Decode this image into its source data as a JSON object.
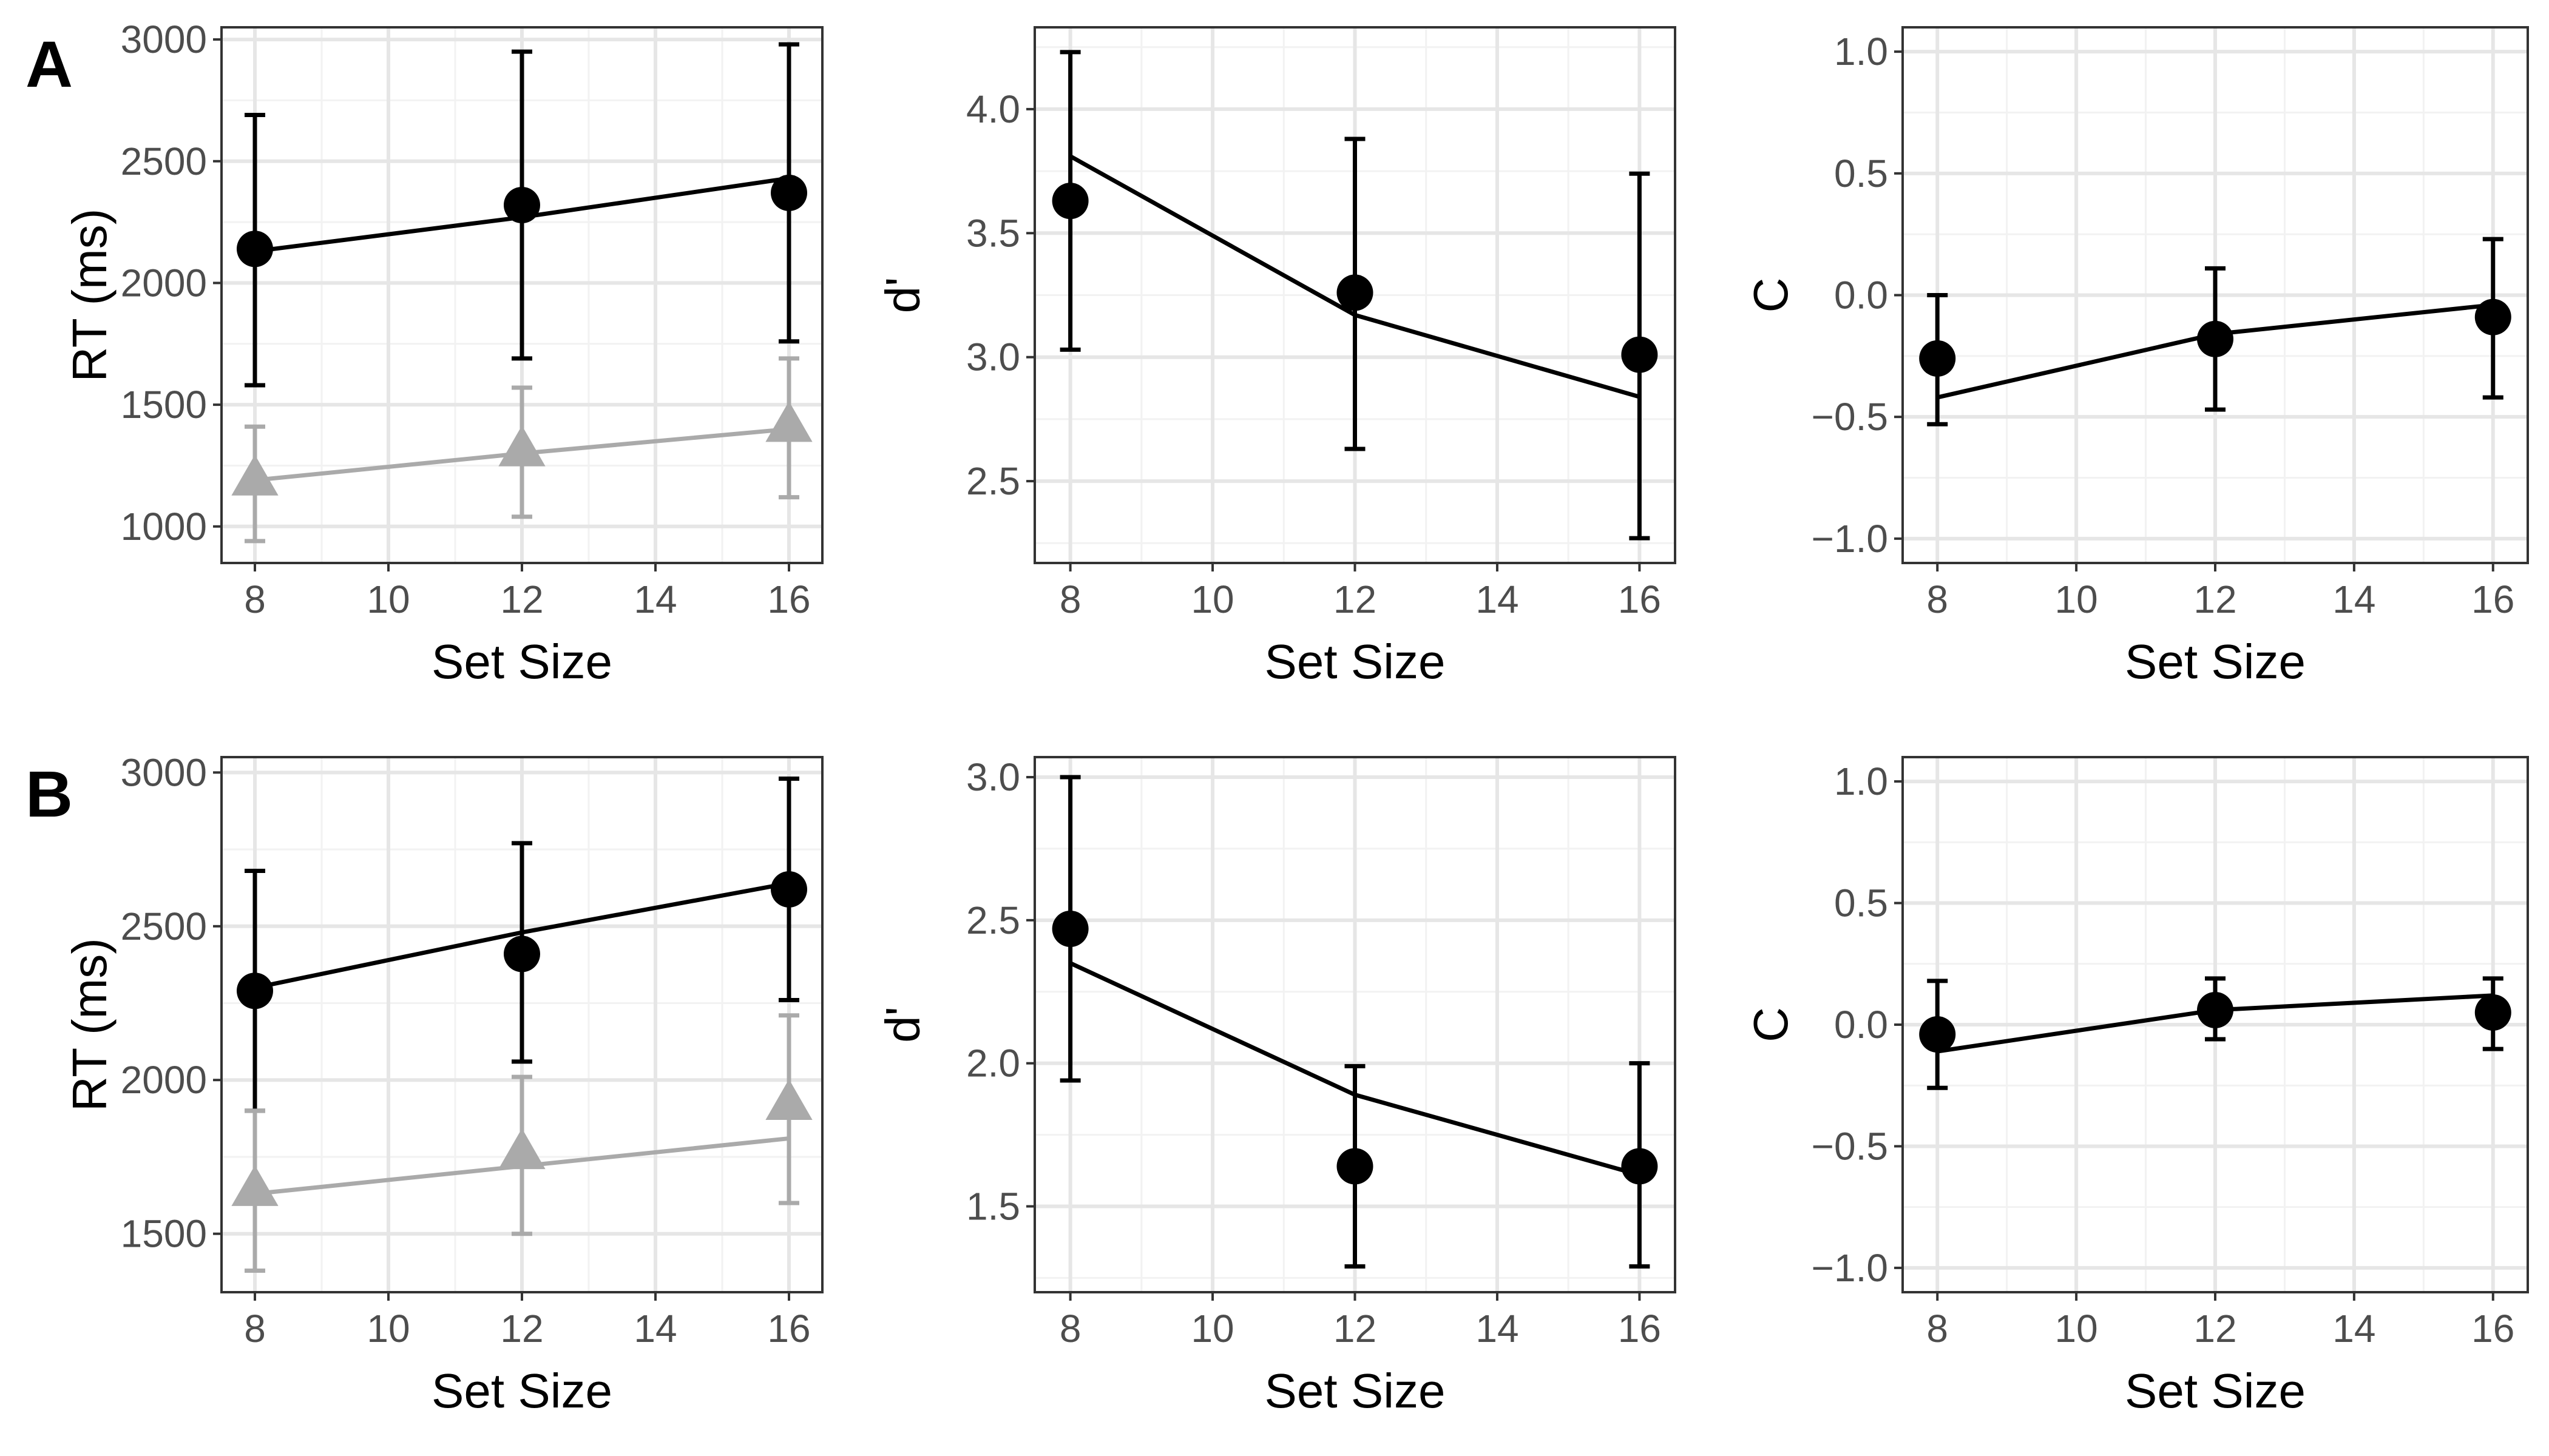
{
  "panel_letters": [
    "A",
    "B"
  ],
  "colors": {
    "black": "#000000",
    "gray": "#aaaaaa",
    "grid_major": "#e6e6e6",
    "grid_minor": "#f2f2f2",
    "axis_text": "#4d4d4d"
  },
  "chart_data": [
    {
      "type": "line",
      "ylabel": "RT (ms)",
      "xlabel": "Set Size",
      "xlim": [
        7.5,
        16.5
      ],
      "ylim": [
        850,
        3050
      ],
      "x_ticks": [
        8,
        10,
        12,
        14,
        16
      ],
      "y_ticks": [
        1000,
        1500,
        2000,
        2500,
        3000
      ],
      "grid": true,
      "series": [
        {
          "color": "#000000",
          "marker": "circle",
          "x": [
            8,
            12,
            16
          ],
          "y": [
            2140,
            2320,
            2370
          ],
          "err_lo": [
            1580,
            1690,
            1760
          ],
          "err_hi": [
            2690,
            2950,
            2980
          ],
          "fit": [
            2130,
            2270,
            2430
          ]
        },
        {
          "color": "#aaaaaa",
          "marker": "triangle",
          "x": [
            8,
            12,
            16
          ],
          "y": [
            1190,
            1310,
            1410
          ],
          "err_lo": [
            940,
            1040,
            1120
          ],
          "err_hi": [
            1410,
            1570,
            1690
          ],
          "fit": [
            1190,
            1300,
            1400
          ]
        }
      ]
    },
    {
      "type": "line",
      "ylabel": "d'",
      "xlabel": "Set Size",
      "xlim": [
        7.5,
        16.5
      ],
      "ylim": [
        2.17,
        4.33
      ],
      "x_ticks": [
        8,
        10,
        12,
        14,
        16
      ],
      "y_ticks": [
        2.5,
        3.0,
        3.5,
        4.0
      ],
      "grid": true,
      "series": [
        {
          "color": "#000000",
          "marker": "circle",
          "x": [
            8,
            12,
            16
          ],
          "y": [
            3.63,
            3.26,
            3.01
          ],
          "err_lo": [
            3.03,
            2.63,
            2.27
          ],
          "err_hi": [
            4.23,
            3.88,
            3.74
          ],
          "fit": [
            3.81,
            3.17,
            2.84
          ]
        }
      ]
    },
    {
      "type": "line",
      "ylabel": "C",
      "xlabel": "Set Size",
      "xlim": [
        7.5,
        16.5
      ],
      "ylim": [
        -1.1,
        1.1
      ],
      "x_ticks": [
        8,
        10,
        12,
        14,
        16
      ],
      "y_ticks": [
        -1.0,
        -0.5,
        0.0,
        0.5,
        1.0
      ],
      "grid": true,
      "series": [
        {
          "color": "#000000",
          "marker": "circle",
          "x": [
            8,
            12,
            16
          ],
          "y": [
            -0.26,
            -0.18,
            -0.09
          ],
          "err_lo": [
            -0.53,
            -0.47,
            -0.42
          ],
          "err_hi": [
            0.0,
            0.11,
            0.23
          ],
          "fit": [
            -0.42,
            -0.16,
            -0.04
          ]
        }
      ]
    },
    {
      "type": "line",
      "ylabel": "RT (ms)",
      "xlabel": "Set Size",
      "xlim": [
        7.5,
        16.5
      ],
      "ylim": [
        1310,
        3050
      ],
      "x_ticks": [
        8,
        10,
        12,
        14,
        16
      ],
      "y_ticks": [
        1500,
        2000,
        2500,
        3000
      ],
      "grid": true,
      "series": [
        {
          "color": "#000000",
          "marker": "circle",
          "x": [
            8,
            12,
            16
          ],
          "y": [
            2290,
            2410,
            2620
          ],
          "err_lo": [
            1900,
            2060,
            2260
          ],
          "err_hi": [
            2680,
            2770,
            2980
          ],
          "fit": [
            2300,
            2480,
            2640
          ]
        },
        {
          "color": "#aaaaaa",
          "marker": "triangle",
          "x": [
            8,
            12,
            16
          ],
          "y": [
            1640,
            1760,
            1920
          ],
          "err_lo": [
            1380,
            1500,
            1600
          ],
          "err_hi": [
            1900,
            2010,
            2210
          ],
          "fit": [
            1630,
            1720,
            1810
          ]
        }
      ]
    },
    {
      "type": "line",
      "ylabel": "d'",
      "xlabel": "Set Size",
      "xlim": [
        7.5,
        16.5
      ],
      "ylim": [
        1.2,
        3.07
      ],
      "x_ticks": [
        8,
        10,
        12,
        14,
        16
      ],
      "y_ticks": [
        1.5,
        2.0,
        2.5,
        3.0
      ],
      "grid": true,
      "series": [
        {
          "color": "#000000",
          "marker": "circle",
          "x": [
            8,
            12,
            16
          ],
          "y": [
            2.47,
            1.64,
            1.64
          ],
          "err_lo": [
            1.94,
            1.29,
            1.29
          ],
          "err_hi": [
            3.0,
            1.99,
            2.0
          ],
          "fit": [
            2.35,
            1.89,
            1.61
          ]
        }
      ]
    },
    {
      "type": "line",
      "ylabel": "C",
      "xlabel": "Set Size",
      "xlim": [
        7.5,
        16.5
      ],
      "ylim": [
        -1.1,
        1.1
      ],
      "x_ticks": [
        8,
        10,
        12,
        14,
        16
      ],
      "y_ticks": [
        -1.0,
        -0.5,
        0.0,
        0.5,
        1.0
      ],
      "grid": true,
      "series": [
        {
          "color": "#000000",
          "marker": "circle",
          "x": [
            8,
            12,
            16
          ],
          "y": [
            -0.04,
            0.06,
            0.05
          ],
          "err_lo": [
            -0.26,
            -0.06,
            -0.1
          ],
          "err_hi": [
            0.18,
            0.19,
            0.19
          ],
          "fit": [
            -0.11,
            0.06,
            0.12
          ]
        }
      ]
    }
  ]
}
